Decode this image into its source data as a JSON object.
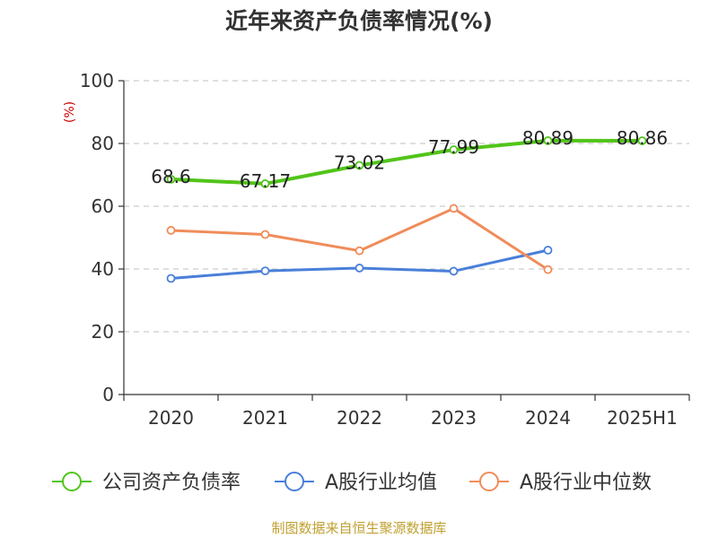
{
  "title": "近年来资产负债率情况(%)",
  "source": "制图数据来自恒生聚源数据库",
  "chart_data": {
    "type": "line",
    "ylabel": "(%)",
    "ylim": [
      0,
      100
    ],
    "yticks": [
      0,
      20,
      40,
      60,
      80,
      100
    ],
    "categories": [
      "2020",
      "2021",
      "2022",
      "2023",
      "2024",
      "2025H1"
    ],
    "grid": true,
    "legend_position": "bottom",
    "series": [
      {
        "name": "公司资产负债率",
        "color": "#52c41a",
        "values": [
          68.6,
          67.17,
          73.02,
          77.99,
          80.89,
          80.86
        ],
        "labels": [
          "68.6",
          "67.17",
          "73.02",
          "77.99",
          "80.89",
          "80.86"
        ]
      },
      {
        "name": "A股行业均值",
        "color": "#4a7fd9",
        "values": [
          37.0,
          39.4,
          40.3,
          39.3,
          46.0,
          null
        ]
      },
      {
        "name": "A股行业中位数",
        "color": "#f08c5a",
        "values": [
          52.3,
          51.0,
          45.8,
          59.3,
          39.8,
          null
        ]
      }
    ]
  }
}
